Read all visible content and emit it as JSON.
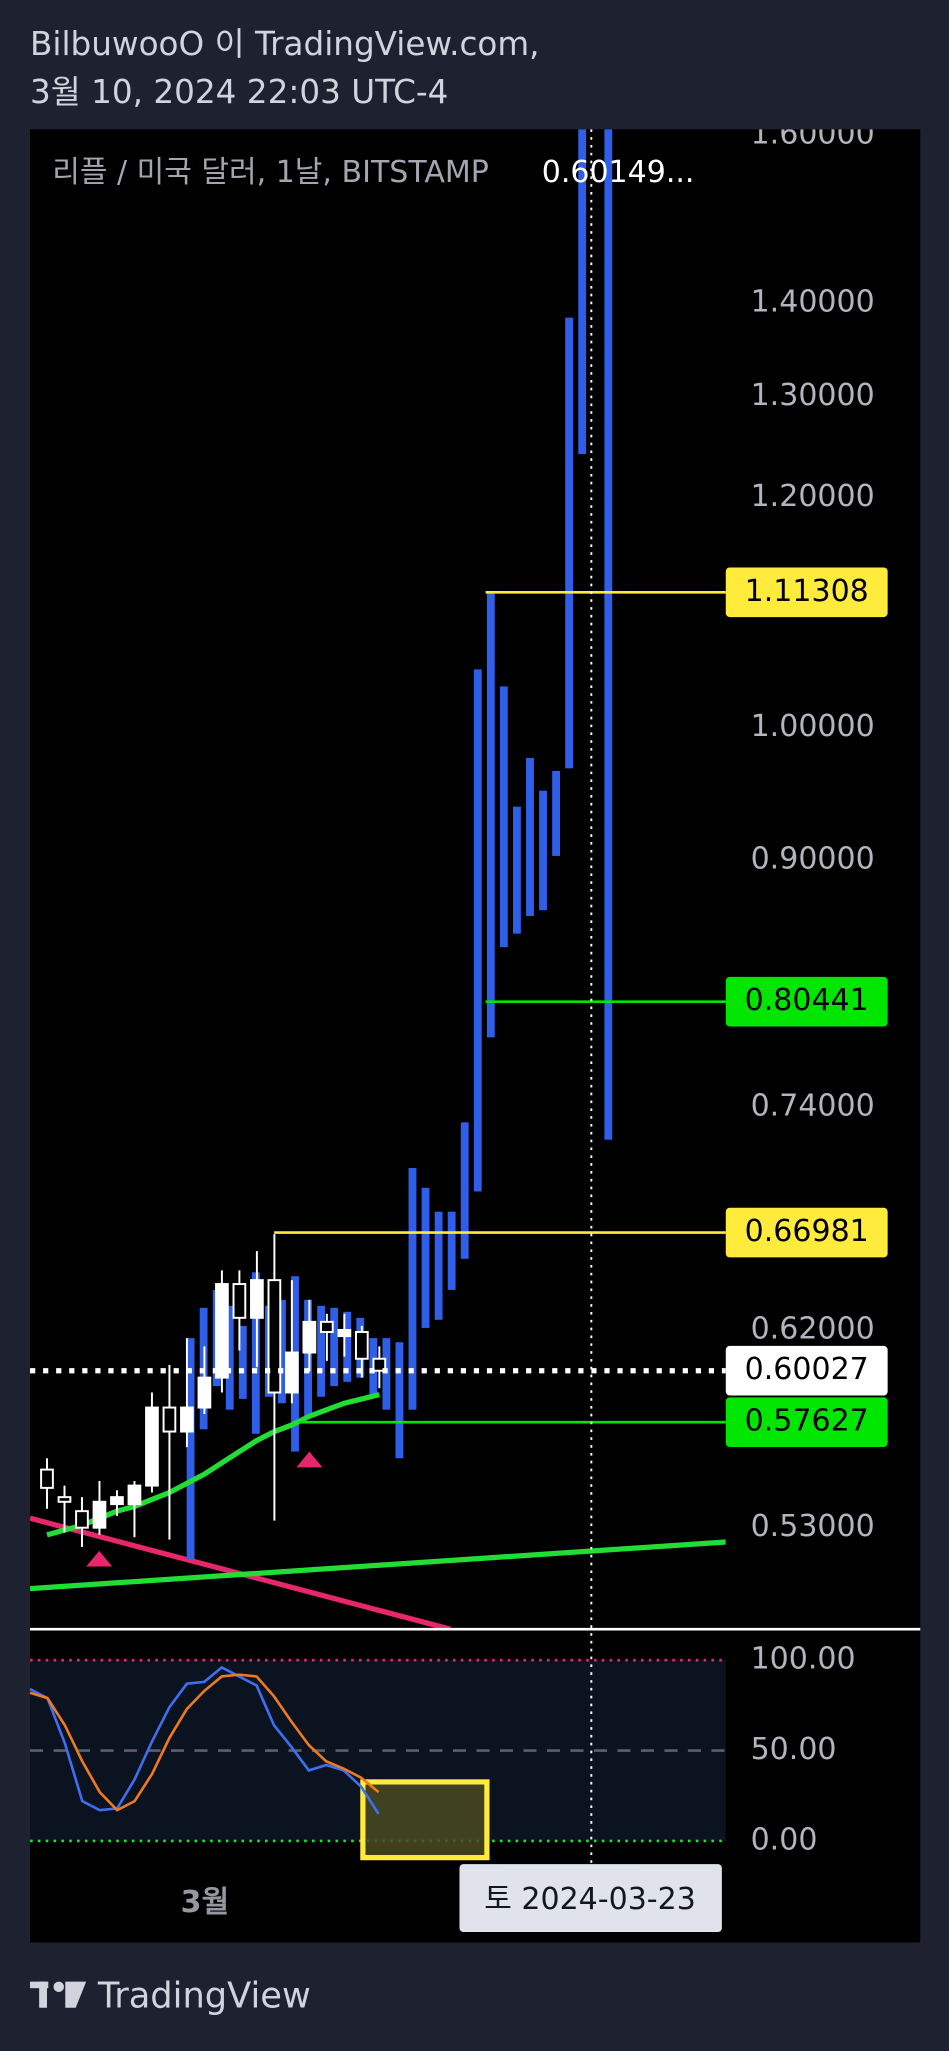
{
  "header": {
    "line1": "BilbuwooO 이 TradingView.com,",
    "line2": "3월 10, 2024 22:03 UTC-4"
  },
  "chart_data": {
    "type": "candlestick",
    "title": "리플 / 미국 달러, 1날, BITSTAMP",
    "legend_value": "0.60149...",
    "log_scale": true,
    "ylim": [
      0.489,
      1.607
    ],
    "yticks": [
      {
        "value": 1.6,
        "label": "1.60000"
      },
      {
        "value": 1.4,
        "label": "1.40000"
      },
      {
        "value": 1.3,
        "label": "1.30000"
      },
      {
        "value": 1.2,
        "label": "1.20000"
      },
      {
        "value": 1.0,
        "label": "1.00000"
      },
      {
        "value": 0.9,
        "label": "0.90000"
      },
      {
        "value": 0.74,
        "label": "0.74000"
      },
      {
        "value": 0.62,
        "label": "0.62000"
      },
      {
        "value": 0.53,
        "label": "0.53000"
      }
    ],
    "candles": {
      "up_color": "#ffffff",
      "down_color": "#000000",
      "open": [
        0.555,
        0.543,
        0.537,
        0.53,
        0.54,
        0.54,
        0.548,
        0.583,
        0.572,
        0.583,
        0.597,
        0.643,
        0.626,
        0.645,
        0.59,
        0.609,
        0.624,
        0.617,
        0.619,
        0.606
      ],
      "high": [
        0.56,
        0.548,
        0.543,
        0.55,
        0.546,
        0.55,
        0.59,
        0.603,
        0.616,
        0.612,
        0.65,
        0.65,
        0.66,
        0.669,
        0.645,
        0.635,
        0.628,
        0.628,
        0.622,
        0.612
      ],
      "low": [
        0.538,
        0.528,
        0.522,
        0.527,
        0.535,
        0.526,
        0.545,
        0.525,
        0.565,
        0.58,
        0.59,
        0.61,
        0.602,
        0.533,
        0.585,
        0.6,
        0.605,
        0.607,
        0.597,
        0.592
      ],
      "close": [
        0.547,
        0.541,
        0.53,
        0.541,
        0.543,
        0.548,
        0.583,
        0.572,
        0.583,
        0.597,
        0.643,
        0.626,
        0.645,
        0.59,
        0.609,
        0.624,
        0.619,
        0.62,
        0.606,
        0.60027
      ]
    },
    "moving_average": {
      "color": "#22dd33",
      "values": [
        0.527,
        0.529,
        0.531,
        0.534,
        0.537,
        0.539,
        0.542,
        0.545,
        0.549,
        0.553,
        0.558,
        0.563,
        0.568,
        0.572,
        0.575,
        0.579,
        0.582,
        0.585,
        0.587,
        0.589
      ]
    },
    "projection": {
      "color": "#2f5fe8",
      "high": [
        0.616,
        0.631,
        0.64,
        0.632,
        0.622,
        0.649,
        0.632,
        0.635,
        0.647,
        0.635,
        0.632,
        0.631,
        0.629,
        0.626,
        0.616,
        0.616,
        0.614,
        0.705,
        0.694,
        0.681,
        0.681,
        0.731,
        1.047,
        1.113,
        1.033,
        0.939,
        0.976,
        0.951,
        0.966,
        1.384,
        1.75,
        null,
        1.75
      ],
      "low": [
        0.517,
        0.573,
        0.593,
        0.582,
        0.587,
        0.571,
        0.588,
        0.585,
        0.563,
        0.579,
        0.588,
        0.593,
        0.595,
        0.597,
        0.589,
        0.582,
        0.56,
        0.582,
        0.621,
        0.625,
        0.64,
        0.656,
        0.692,
        0.782,
        0.84,
        0.849,
        0.861,
        0.865,
        0.903,
        0.968,
        1.242,
        null,
        0.721
      ]
    },
    "trendlines": [
      {
        "color": "#e8266b",
        "values": [
          0.534,
          0.489
        ]
      },
      {
        "color": "#22dd33",
        "values": [
          0.505,
          0.524
        ]
      }
    ],
    "price_lines": [
      {
        "value": 1.11308,
        "color": "#ffeb3b"
      },
      {
        "value": 0.80441,
        "color": "#00e600"
      },
      {
        "value": 0.66981,
        "color": "#ffeb3b"
      },
      {
        "value": 0.60027,
        "color": "#ffffff"
      },
      {
        "value": 0.57627,
        "color": "#00e600"
      }
    ],
    "x_label": "3월",
    "crosshair_label": "토 2024-03-23",
    "oscillator": {
      "ylim": [
        -14.3,
        115.7
      ],
      "yticks": [
        {
          "value": 100,
          "label": "100.00"
        },
        {
          "value": 50,
          "label": "50.00"
        },
        {
          "value": 0,
          "label": "0.00"
        }
      ],
      "series": [
        {
          "color": "#3d6ff0",
          "values": [
            84,
            79,
            54,
            22,
            17,
            18,
            34,
            55,
            74,
            87,
            88,
            96,
            91,
            86,
            64,
            52,
            39,
            42,
            39,
            30,
            15
          ]
        },
        {
          "color": "#f07a1f",
          "values": [
            82,
            79,
            64,
            44,
            27,
            17,
            22,
            37,
            57,
            73,
            83,
            91,
            92,
            91,
            80,
            66,
            53,
            44,
            40,
            35,
            27
          ]
        }
      ]
    }
  },
  "footer": {
    "brand": "TradingView"
  }
}
